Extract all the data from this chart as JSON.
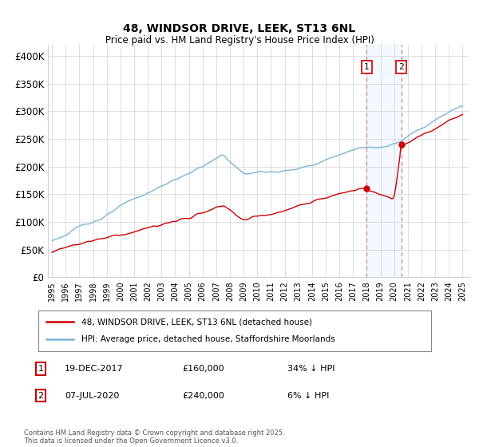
{
  "title": "48, WINDSOR DRIVE, LEEK, ST13 6NL",
  "subtitle": "Price paid vs. HM Land Registry's House Price Index (HPI)",
  "ylabel_ticks": [
    "£0",
    "£50K",
    "£100K",
    "£150K",
    "£200K",
    "£250K",
    "£300K",
    "£350K",
    "£400K"
  ],
  "ytick_values": [
    0,
    50000,
    100000,
    150000,
    200000,
    250000,
    300000,
    350000,
    400000
  ],
  "ylim": [
    0,
    420000
  ],
  "xlim_start": 1994.7,
  "xlim_end": 2025.5,
  "hpi_color": "#7ab3d8",
  "price_color": "#cc0000",
  "annotation_color": "#cc0000",
  "dashed_color": "#e08080",
  "background_color": "#ffffff",
  "grid_color": "#d0d0d0",
  "point1_x": 2018.0,
  "point1_y": 160000,
  "point1_label": "1",
  "point1_date": "19-DEC-2017",
  "point1_price": "£160,000",
  "point1_hpi": "34% ↓ HPI",
  "point2_x": 2020.52,
  "point2_y": 240000,
  "point2_label": "2",
  "point2_date": "07-JUL-2020",
  "point2_price": "£240,000",
  "point2_hpi": "6% ↓ HPI",
  "legend_line1": "48, WINDSOR DRIVE, LEEK, ST13 6NL (detached house)",
  "legend_line2": "HPI: Average price, detached house, Staffordshire Moorlands",
  "footnote": "Contains HM Land Registry data © Crown copyright and database right 2025.\nThis data is licensed under the Open Government Licence v3.0.",
  "shade_color": "#ddeeff",
  "shade_alpha": 0.35
}
